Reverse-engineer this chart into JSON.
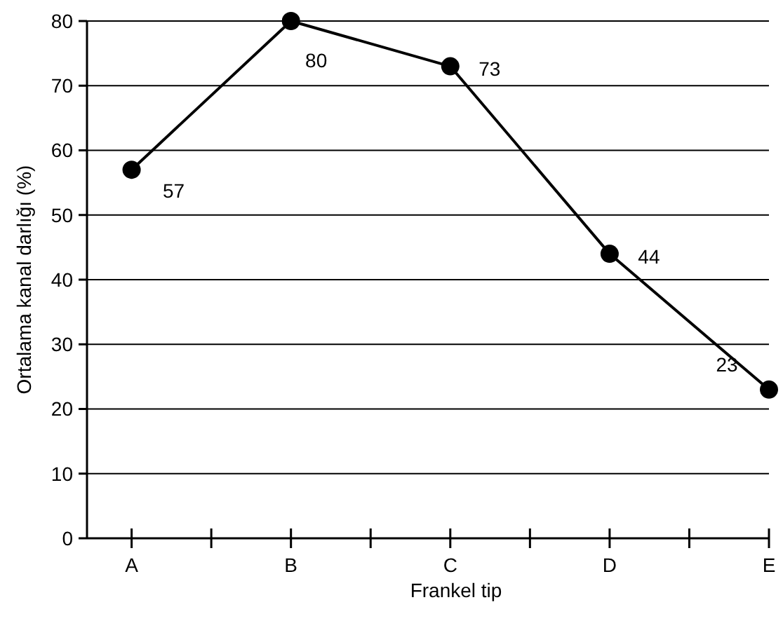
{
  "chart_data": {
    "type": "line",
    "categories": [
      "A",
      "B",
      "C",
      "D",
      "E"
    ],
    "values": [
      57,
      80,
      73,
      44,
      23
    ],
    "color": "#000000",
    "xlabel": "Frankel tip",
    "ylabel": "Ortalama kanal darlığı (%)",
    "ylim": [
      0,
      80
    ],
    "yticks": [
      0,
      10,
      20,
      30,
      40,
      50,
      60,
      70,
      80
    ],
    "grid": "y",
    "marker": "circle",
    "line_style": "solid",
    "data_labels": true
  }
}
